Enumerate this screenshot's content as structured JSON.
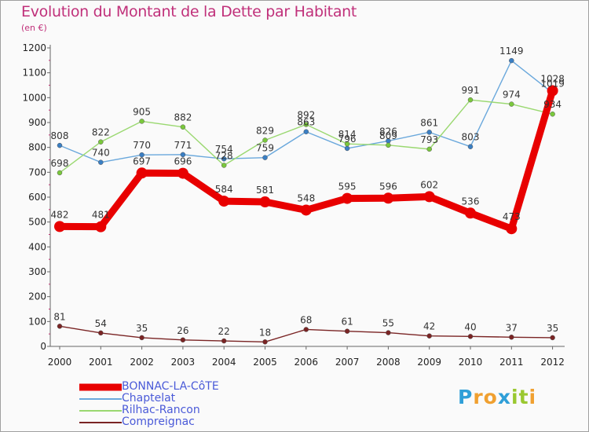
{
  "header": {
    "title": "Evolution du Montant de la Dette par Habitant",
    "subtitle": "(en €)"
  },
  "logo": {
    "letters": [
      "P",
      "r",
      "o",
      "x",
      "i",
      "t",
      "i"
    ],
    "colors": [
      "#2f9fd8",
      "#f0a030",
      "#f0a030",
      "#2f9fd8",
      "#9ac830",
      "#9ac830",
      "#f0a030"
    ]
  },
  "chart_data": {
    "type": "line",
    "x": [
      "2000",
      "2001",
      "2002",
      "2003",
      "2004",
      "2005",
      "2006",
      "2007",
      "2008",
      "2009",
      "2010",
      "2011",
      "2012"
    ],
    "ylim": [
      0,
      1200
    ],
    "yticks": [
      0,
      100,
      200,
      300,
      400,
      500,
      600,
      700,
      800,
      900,
      1000,
      1100,
      1200
    ],
    "grid": false,
    "legend_position": "bottom-left",
    "series": [
      {
        "name": "BONNAC-LA-CôTE",
        "color": "#e80000",
        "marker_fill": "#e80000",
        "emphasis": true,
        "values": [
          482,
          481,
          697,
          696,
          584,
          581,
          548,
          595,
          596,
          602,
          536,
          473,
          1028
        ]
      },
      {
        "name": "Chaptelat",
        "color": "#6aa8dc",
        "marker_fill": "#3a7fc4",
        "emphasis": false,
        "values": [
          808,
          740,
          770,
          771,
          754,
          759,
          863,
          796,
          826,
          861,
          803,
          1149,
          1019
        ]
      },
      {
        "name": "Rilhac-Rancon",
        "color": "#9ad870",
        "marker_fill": "#7ac83c",
        "emphasis": false,
        "values": [
          698,
          822,
          905,
          882,
          728,
          829,
          892,
          814,
          809,
          793,
          991,
          974,
          934
        ]
      },
      {
        "name": "Compreignac",
        "color": "#7a2424",
        "marker_fill": "#7a2424",
        "emphasis": false,
        "values": [
          81,
          54,
          35,
          26,
          22,
          18,
          68,
          61,
          55,
          42,
          40,
          37,
          35
        ]
      }
    ]
  }
}
